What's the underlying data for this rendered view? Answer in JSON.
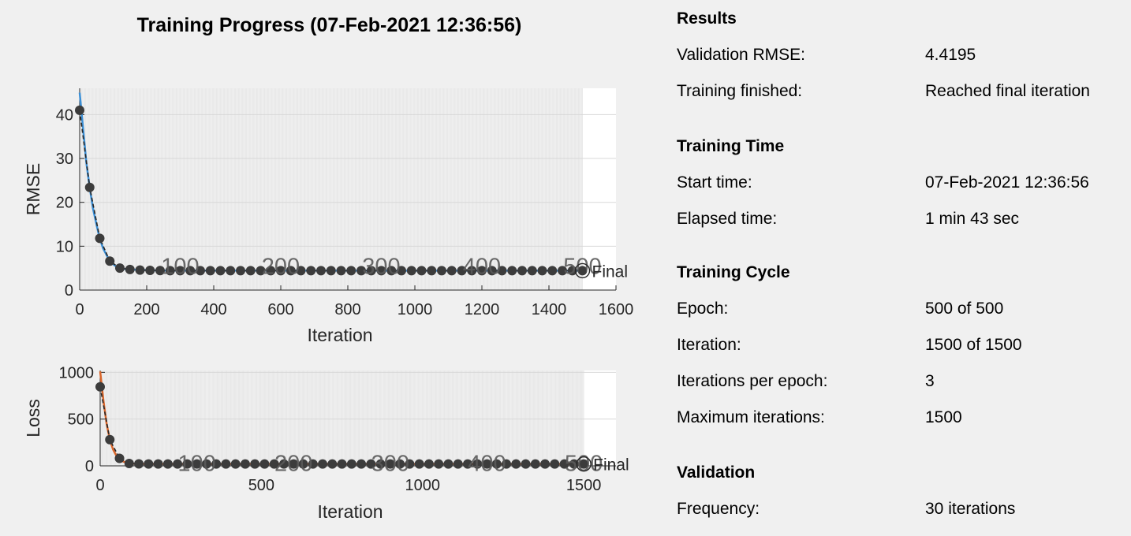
{
  "title": "Training Progress (07-Feb-2021 12:36:56)",
  "chart_data": [
    {
      "type": "line",
      "ylabel": "RMSE",
      "xlabel": "Iteration",
      "xlim": [
        0,
        1600
      ],
      "ylim": [
        0,
        46
      ],
      "x_ticks": [
        0,
        200,
        400,
        600,
        800,
        1000,
        1200,
        1400,
        1600
      ],
      "y_ticks": [
        0,
        10,
        20,
        30,
        40
      ],
      "epoch_labels": [
        "100",
        "200",
        "300",
        "400",
        "500"
      ],
      "epoch_iterations": [
        300,
        600,
        900,
        1200,
        1500
      ],
      "final_label": "Final",
      "colors": {
        "smoothed": "#3b8fd6",
        "raw": "#8fbde6",
        "validation": "#3c3c3c"
      },
      "series": [
        {
          "x": [
            0,
            10,
            20,
            30,
            40,
            50,
            60,
            70,
            80,
            90,
            100,
            110,
            120,
            135,
            150,
            180,
            240,
            1500
          ],
          "values": [
            45,
            37,
            29,
            23.3,
            18.5,
            15,
            11.7,
            9.5,
            8,
            6.6,
            5.9,
            5.3,
            5,
            4.8,
            4.7,
            4.6,
            4.45,
            4.42
          ]
        },
        {
          "x": [
            0,
            30,
            60,
            90,
            120,
            150,
            180,
            210,
            240,
            270,
            300,
            330,
            360,
            390,
            420,
            450,
            480,
            510,
            540,
            570,
            600,
            630,
            660,
            690,
            720,
            750,
            780,
            810,
            840,
            870,
            900,
            930,
            960,
            990,
            1020,
            1050,
            1080,
            1110,
            1140,
            1170,
            1200,
            1230,
            1260,
            1290,
            1320,
            1350,
            1380,
            1410,
            1440,
            1470,
            1500
          ],
          "values": [
            41,
            23.4,
            11.8,
            6.6,
            5,
            4.7,
            4.55,
            4.5,
            4.45,
            4.43,
            4.42,
            4.42,
            4.42,
            4.42,
            4.42,
            4.42,
            4.42,
            4.42,
            4.42,
            4.42,
            4.42,
            4.42,
            4.42,
            4.42,
            4.42,
            4.42,
            4.42,
            4.42,
            4.42,
            4.42,
            4.42,
            4.42,
            4.42,
            4.42,
            4.42,
            4.42,
            4.42,
            4.42,
            4.42,
            4.42,
            4.42,
            4.42,
            4.42,
            4.42,
            4.42,
            4.42,
            4.42,
            4.42,
            4.42,
            4.42,
            4.4195
          ]
        }
      ]
    },
    {
      "type": "line",
      "ylabel": "Loss",
      "xlabel": "Iteration",
      "xlim": [
        0,
        1600
      ],
      "ylim": [
        0,
        1020
      ],
      "x_ticks": [
        0,
        500,
        1000,
        1500
      ],
      "y_ticks": [
        0,
        500,
        1000
      ],
      "epoch_labels": [
        "100",
        "200",
        "300",
        "400",
        "500"
      ],
      "epoch_iterations": [
        300,
        600,
        900,
        1200,
        1500
      ],
      "final_label": "Final",
      "colors": {
        "smoothed": "#d9662b",
        "raw": "#eba47f",
        "validation": "#3c3c3c"
      },
      "series": [
        {
          "x": [
            0,
            10,
            20,
            30,
            40,
            50,
            60,
            70,
            80,
            90,
            100,
            120,
            150,
            200,
            1500
          ],
          "values": [
            1010,
            700,
            450,
            280,
            175,
            110,
            70,
            48,
            35,
            27,
            23,
            20,
            19.5,
            19.5,
            19.5
          ]
        },
        {
          "x": [
            0,
            30,
            60,
            90,
            120,
            150,
            180,
            210,
            240,
            270,
            300,
            330,
            360,
            390,
            420,
            450,
            480,
            510,
            540,
            570,
            600,
            630,
            660,
            690,
            720,
            750,
            780,
            810,
            840,
            870,
            900,
            930,
            960,
            990,
            1020,
            1050,
            1080,
            1110,
            1140,
            1170,
            1200,
            1230,
            1260,
            1290,
            1320,
            1350,
            1380,
            1410,
            1440,
            1470,
            1500
          ],
          "values": [
            845,
            280,
            80,
            25,
            21,
            20,
            19.7,
            19.6,
            19.5,
            19.5,
            19.5,
            19.5,
            19.5,
            19.5,
            19.5,
            19.5,
            19.5,
            19.5,
            19.5,
            19.5,
            19.5,
            19.5,
            19.5,
            19.5,
            19.5,
            19.5,
            19.5,
            19.5,
            19.5,
            19.5,
            19.5,
            19.5,
            19.5,
            19.5,
            19.5,
            19.5,
            19.5,
            19.5,
            19.5,
            19.5,
            19.5,
            19.5,
            19.5,
            19.5,
            19.5,
            19.5,
            19.5,
            19.5,
            19.5,
            19.5,
            19.5
          ]
        }
      ]
    }
  ],
  "info": {
    "results": {
      "title": "Results",
      "rows": [
        {
          "label": "Validation RMSE:",
          "value": "4.4195"
        },
        {
          "label": "Training finished:",
          "value": "Reached final iteration"
        }
      ]
    },
    "time": {
      "title": "Training Time",
      "rows": [
        {
          "label": "Start time:",
          "value": "07-Feb-2021 12:36:56"
        },
        {
          "label": "Elapsed time:",
          "value": "1 min 43 sec"
        }
      ]
    },
    "cycle": {
      "title": "Training Cycle",
      "rows": [
        {
          "label": "Epoch:",
          "value": "500 of 500"
        },
        {
          "label": "Iteration:",
          "value": "1500 of 1500"
        },
        {
          "label": "Iterations per epoch:",
          "value": "3"
        },
        {
          "label": "Maximum iterations:",
          "value": "1500"
        }
      ]
    },
    "validation": {
      "title": "Validation",
      "rows": [
        {
          "label": "Frequency:",
          "value": "30 iterations"
        }
      ]
    }
  }
}
